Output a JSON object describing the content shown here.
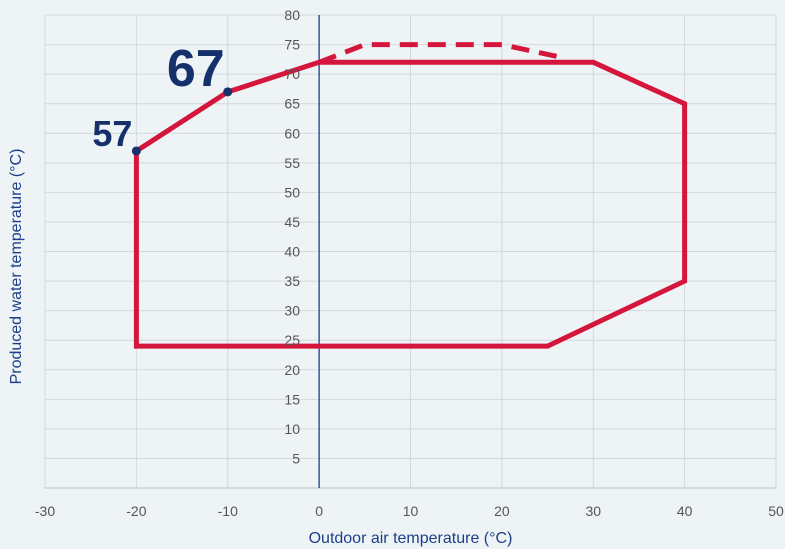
{
  "chart_data": {
    "type": "line",
    "title": "",
    "xlabel": "Outdoor air temperature (°C)",
    "ylabel": "Produced water temperature (°C)",
    "xlim": [
      -30,
      50
    ],
    "ylim": [
      0,
      80
    ],
    "x_ticks": [
      "-30",
      "-20",
      "-10",
      "0",
      "10",
      "20",
      "30",
      "40",
      "50"
    ],
    "y_ticks": [
      "5",
      "10",
      "15",
      "20",
      "25",
      "30",
      "35",
      "40",
      "45",
      "50",
      "55",
      "60",
      "65",
      "70",
      "75",
      "80"
    ],
    "grid": true,
    "colors": {
      "envelope": "#d4163c",
      "marker": "#15306b",
      "axis": "#1d3f8a",
      "grid": "#d2d8dd",
      "background": "#eef3f6"
    },
    "series": [
      {
        "style": "solid",
        "points": [
          [
            -20,
            57
          ],
          [
            -10,
            67
          ],
          [
            0,
            72
          ],
          [
            30,
            72
          ],
          [
            40,
            65
          ],
          [
            40,
            35
          ],
          [
            25,
            24
          ],
          [
            -20,
            24
          ],
          [
            -20,
            57
          ]
        ]
      },
      {
        "style": "dashed",
        "points": [
          [
            0,
            72
          ],
          [
            5,
            75
          ],
          [
            20,
            75
          ],
          [
            26,
            73
          ]
        ]
      }
    ],
    "annotations": [
      {
        "label": "57",
        "x": -20,
        "y": 57
      },
      {
        "label": "67",
        "x": -10,
        "y": 67
      }
    ]
  }
}
